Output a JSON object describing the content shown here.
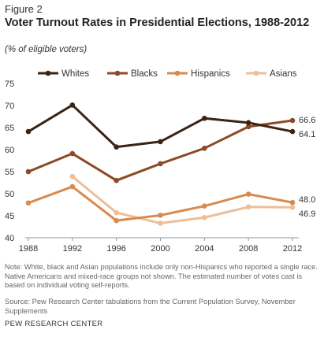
{
  "figure_label": "Figure 2",
  "title": "Voter Turnout Rates in Presidential Elections, 1988-2012",
  "subtitle": "(% of eligible voters)",
  "note": "Note: White, black and Asian populations include only non-Hispanics who reported a single race. Native Americans and mixed-race groups not shown. The estimated number of votes cast is based on individual voting self-reports.",
  "source": "Source: Pew Research Center tabulations from the Current Population Survey, November Supplements",
  "org": "PEW RESEARCH CENTER",
  "chart_data": {
    "type": "line",
    "x": [
      1988,
      1992,
      1996,
      2000,
      2004,
      2008,
      2012
    ],
    "ylim": [
      40,
      75
    ],
    "yticks": [
      40,
      45,
      50,
      55,
      60,
      65,
      70,
      75
    ],
    "grid": false,
    "legend": "top",
    "series": [
      {
        "name": "Whites",
        "color": "#3b2314",
        "values": [
          64.1,
          70.1,
          60.6,
          61.8,
          67.1,
          66.1,
          64.1
        ],
        "end_label": "64.1"
      },
      {
        "name": "Blacks",
        "color": "#8c4a26",
        "values": [
          55.0,
          59.1,
          53.0,
          56.8,
          60.3,
          65.2,
          66.6
        ],
        "end_label": "66.6"
      },
      {
        "name": "Hispanics",
        "color": "#d98a4c",
        "values": [
          47.9,
          51.6,
          43.9,
          45.1,
          47.2,
          49.9,
          48.0
        ],
        "end_label": "48.0"
      },
      {
        "name": "Asians",
        "color": "#edbf99",
        "values": [
          null,
          53.9,
          45.7,
          43.3,
          44.6,
          47.0,
          46.9
        ],
        "end_label": "46.9"
      }
    ]
  }
}
